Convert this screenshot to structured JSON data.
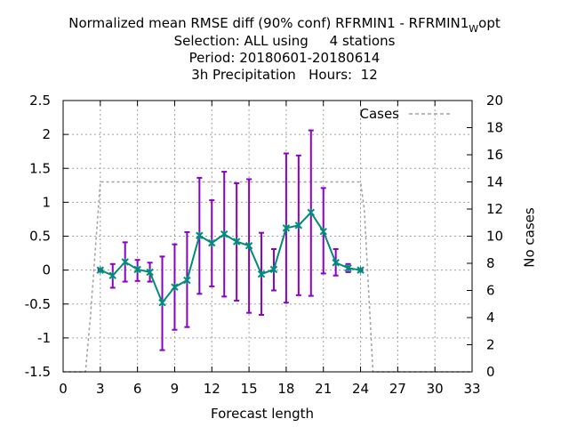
{
  "chart_data": {
    "type": "line",
    "title": {
      "line1_main": "Normalized mean RMSE diff (90% conf) RFRMIN1 - RFRMIN1",
      "line1_sub": "W",
      "line1_end": "opt",
      "line2": "Selection: ALL using     4 stations",
      "line3": "Period: 20180601-20180614",
      "line4": "3h Precipitation   Hours:  12"
    },
    "xlabel": "Forecast length",
    "ylabel_right": "No cases",
    "xlim": [
      0,
      33
    ],
    "ylim": [
      -1.5,
      2.5
    ],
    "y2lim": [
      0,
      20
    ],
    "grid": true,
    "legend_position": "top-right",
    "x_ticks": [
      "0",
      "3",
      "6",
      "9",
      "12",
      "15",
      "18",
      "21",
      "24",
      "27",
      "30",
      "33"
    ],
    "y_ticks": [
      "-1.5",
      "-1",
      "-0.5",
      "0",
      "0.5",
      "1",
      "1.5",
      "2",
      "2.5"
    ],
    "y2_ticks": [
      "0",
      "2",
      "4",
      "6",
      "8",
      "10",
      "12",
      "14",
      "16",
      "18",
      "20"
    ],
    "colors": {
      "series": "#008b7a",
      "errorbars": "#8b00c8",
      "cases": "#a0a0a0",
      "grid": "#a0a0a0"
    },
    "series": [
      {
        "x": [
          3,
          4,
          5,
          6,
          7,
          8,
          9,
          10,
          11,
          12,
          13,
          14,
          15,
          16,
          17,
          18,
          19,
          20,
          21,
          22,
          23,
          24
        ],
        "values": [
          0.0,
          -0.08,
          0.12,
          0.01,
          -0.03,
          -0.48,
          -0.25,
          -0.15,
          0.51,
          0.4,
          0.53,
          0.42,
          0.36,
          -0.06,
          0.01,
          0.62,
          0.66,
          0.85,
          0.57,
          0.11,
          0.03,
          0.0
        ],
        "err_low": [
          0.0,
          -0.26,
          -0.17,
          -0.16,
          -0.17,
          -1.18,
          -0.88,
          -0.84,
          -0.35,
          -0.24,
          -0.39,
          -0.45,
          -0.63,
          -0.66,
          -0.3,
          -0.48,
          -0.37,
          -0.38,
          -0.05,
          -0.08,
          -0.03,
          0.0
        ],
        "err_high": [
          0.0,
          0.09,
          0.41,
          0.15,
          0.11,
          0.2,
          0.38,
          0.56,
          1.36,
          1.03,
          1.45,
          1.28,
          1.34,
          0.55,
          0.31,
          1.72,
          1.69,
          2.06,
          1.21,
          0.31,
          0.09,
          0.0
        ]
      },
      {
        "name": "Cases",
        "axis": "right",
        "x": [
          0,
          1.8,
          2.2,
          3,
          24,
          24.3,
          25,
          33
        ],
        "values": [
          0,
          0,
          4,
          14,
          14,
          12,
          0,
          0
        ]
      }
    ]
  }
}
